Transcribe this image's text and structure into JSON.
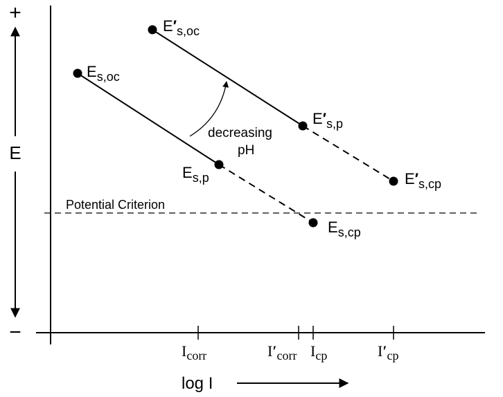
{
  "axes": {
    "y_label": "E",
    "y_top_sign": "+",
    "y_bottom_sign": "−",
    "x_label": "log I"
  },
  "criterion": {
    "label": "Potential Criterion"
  },
  "annotation": {
    "line1": "decreasing",
    "line2": "pH"
  },
  "points": {
    "es_oc": {
      "main": "E",
      "sub": "s,oc"
    },
    "es_p": {
      "main": "E",
      "sub": "s,p"
    },
    "es_cp": {
      "main": "E",
      "sub": "s,cp"
    },
    "es_oc_prime": {
      "main": "E",
      "prime": "′",
      "sub": "s,oc"
    },
    "es_p_prime": {
      "main": "E",
      "prime": "′",
      "sub": "s,p"
    },
    "es_cp_prime": {
      "main": "E",
      "prime": "′",
      "sub": "s,cp"
    }
  },
  "x_ticks": {
    "i_corr": {
      "main": "I",
      "sub": "corr"
    },
    "i_corr_prime": {
      "main": "I",
      "prime": "′",
      "sub": "corr"
    },
    "i_cp": {
      "main": "I",
      "sub": "cp"
    },
    "i_cp_prime": {
      "main": "I",
      "prime": "′",
      "sub": "cp"
    }
  },
  "colors": {
    "ink": "#000000",
    "background": "#ffffff"
  }
}
